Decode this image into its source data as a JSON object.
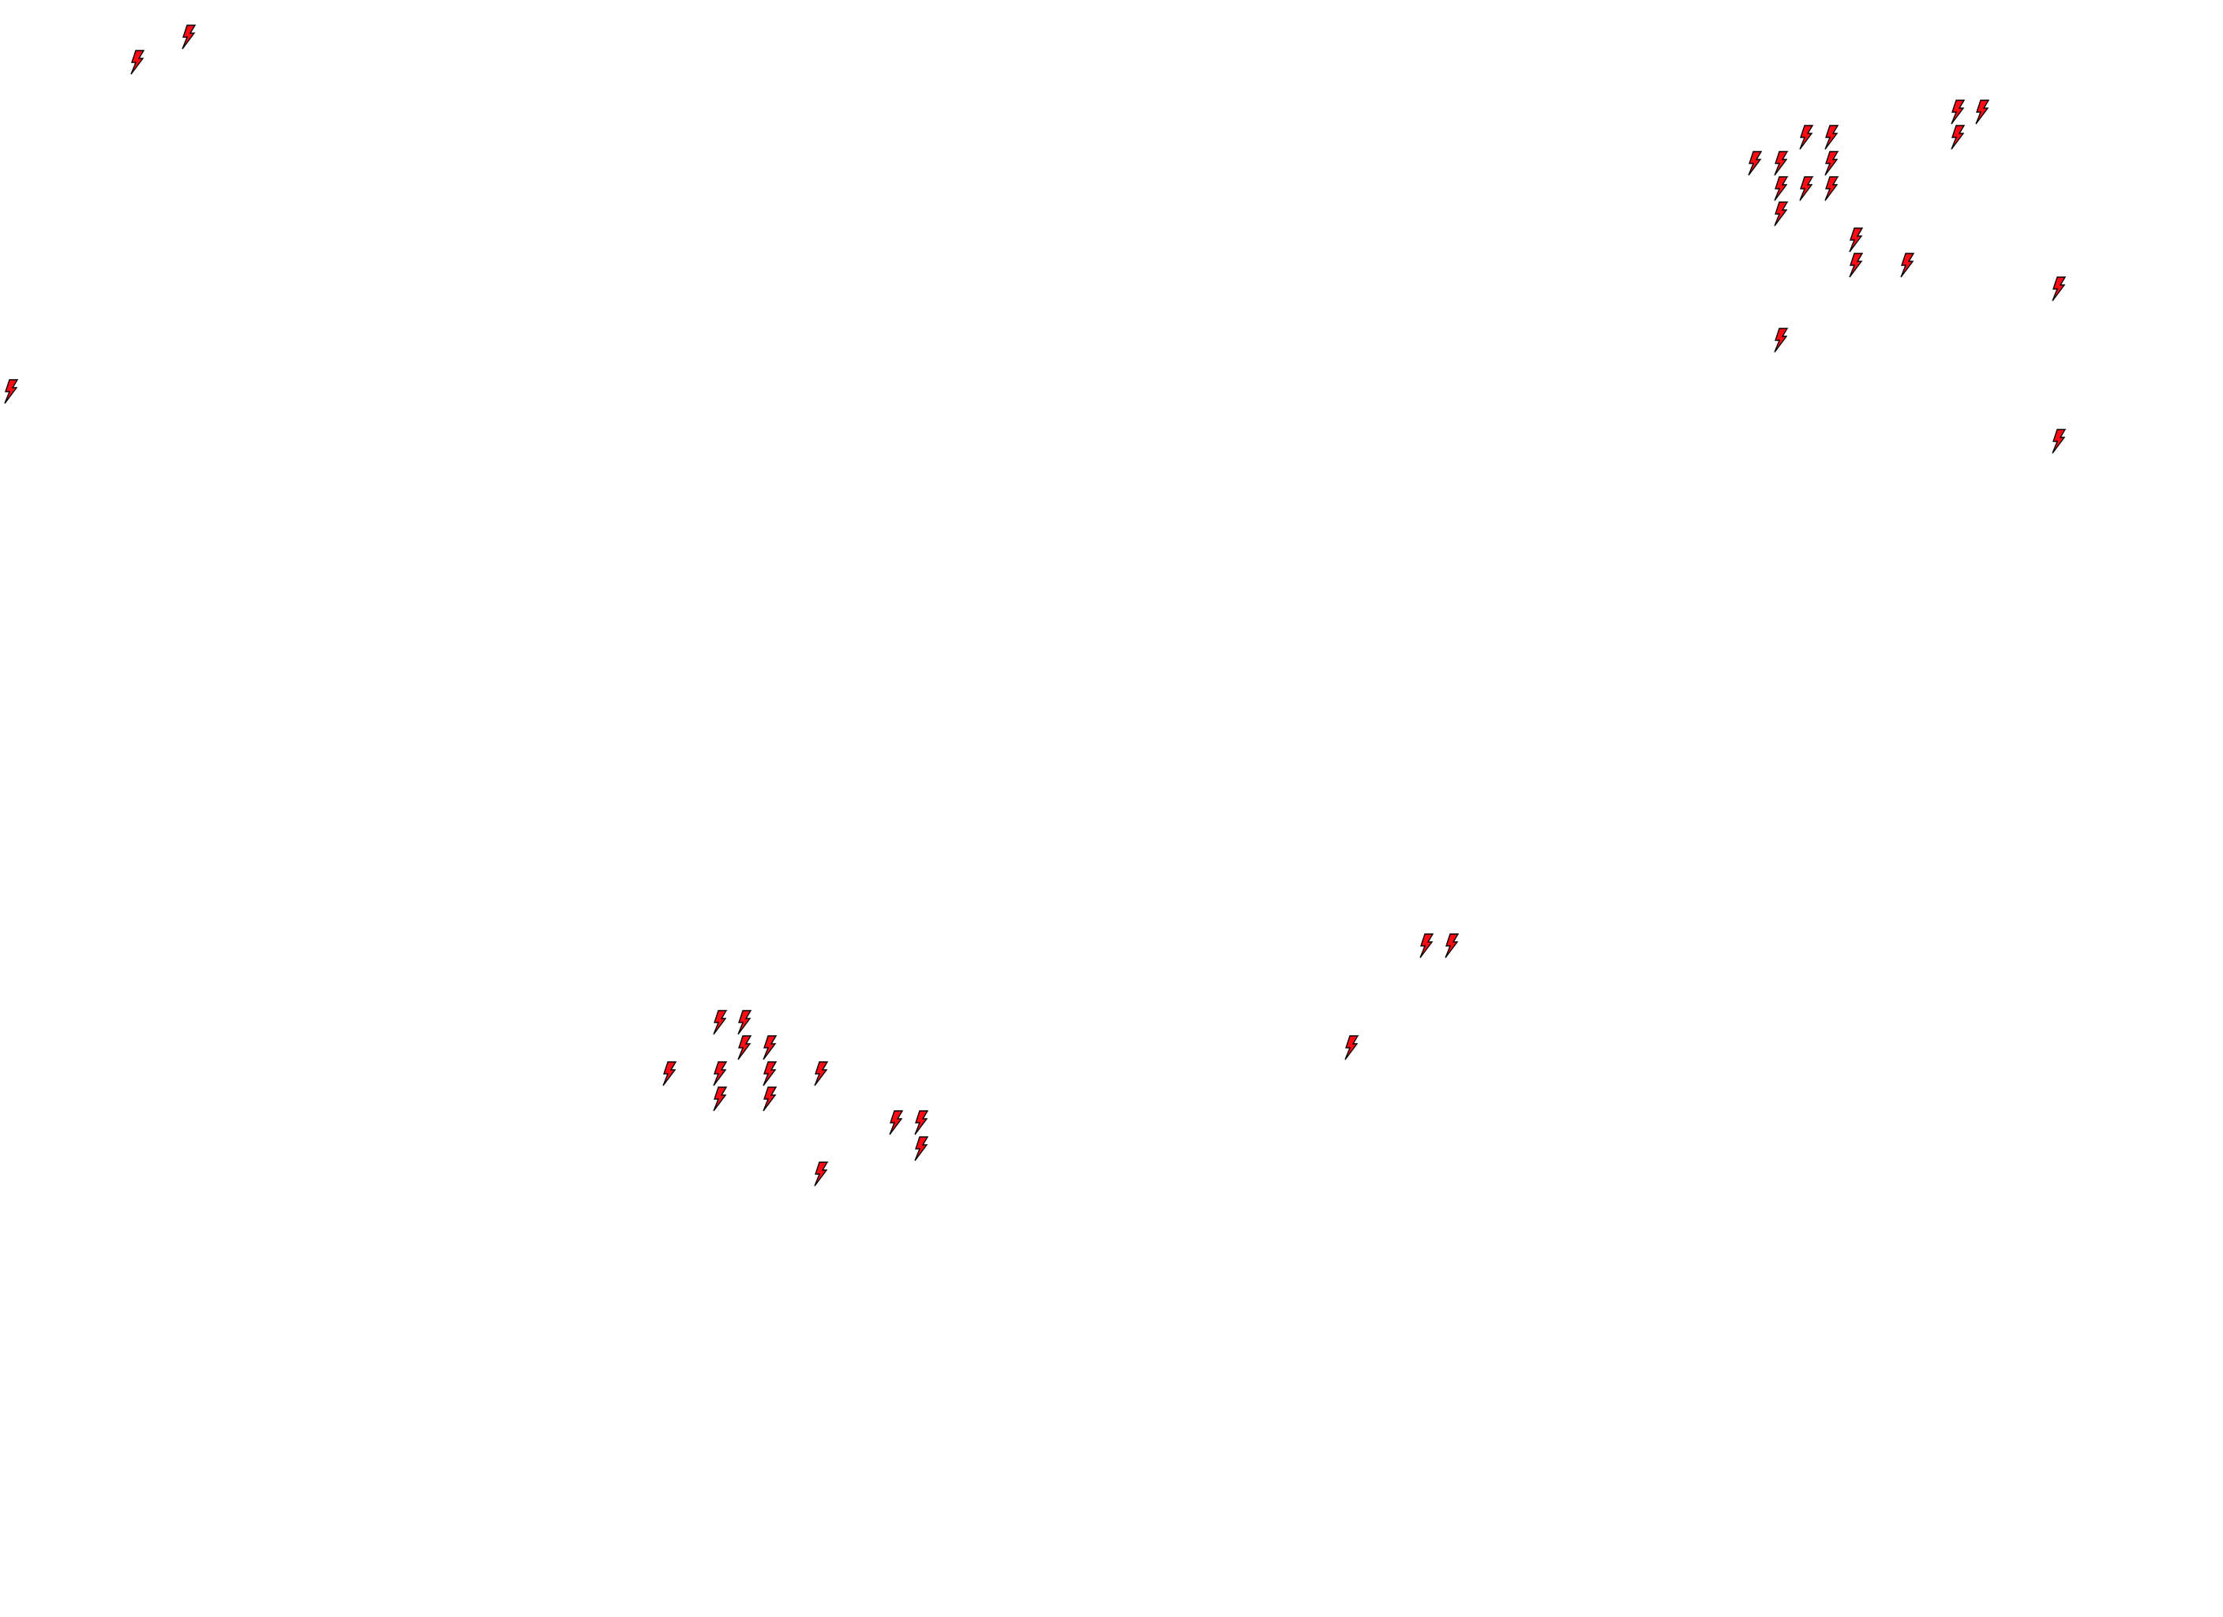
{
  "map": {
    "background": "#ffffff",
    "marker_icon": "lightning-bolt-icon",
    "marker_fill": "#ff0a14",
    "marker_stroke": "#000000"
  }
}
